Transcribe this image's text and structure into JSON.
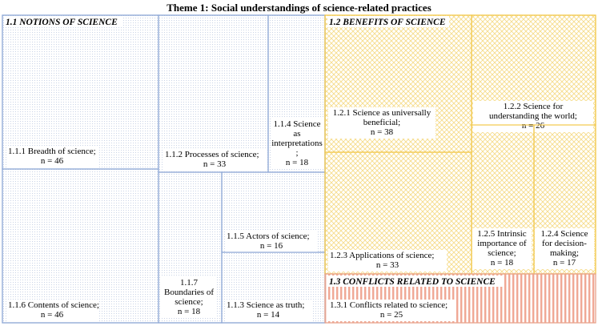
{
  "title": "Theme 1: Social understandings of science-related practices",
  "colors": {
    "notions_border": "#8fa9d6",
    "notions_dots": "#c9d3e6",
    "benefits_border": "#f2c84b",
    "benefits_hatch": "#f6dc8a",
    "conflicts_border": "#e8a58f",
    "conflicts_stripe": "#f0a895"
  },
  "chart_data": {
    "type": "treemap",
    "title": "Theme 1: Social understandings of science-related practices",
    "groups": [
      {
        "id": "notions",
        "header": "1.1 NOTIONS OF SCIENCE",
        "categories": [
          {
            "label": "1.1.1 Breadth of science;",
            "n": "n = 46",
            "value": 46
          },
          {
            "label": "1.1.2 Processes of science;",
            "n": "n = 33",
            "value": 33
          },
          {
            "label": "1.1.4 Science as interpretations;",
            "n": "n = 18",
            "value": 18
          },
          {
            "label": "1.1.6 Contents of science;",
            "n": "n = 46",
            "value": 46
          },
          {
            "label": "1.1.7 Boundaries of science;",
            "n": "n = 18",
            "value": 18
          },
          {
            "label": "1.1.5 Actors of science;",
            "n": "n = 16",
            "value": 16
          },
          {
            "label": "1.1.3 Science as truth;",
            "n": "n = 14",
            "value": 14
          }
        ]
      },
      {
        "id": "benefits",
        "header": "1.2 BENEFITS OF SCIENCE",
        "categories": [
          {
            "label": "1.2.1 Science as universally beneficial;",
            "n": "n = 38",
            "value": 38
          },
          {
            "label": "1.2.2 Science for understanding the world;",
            "n": "n = 26",
            "value": 26
          },
          {
            "label": "1.2.3 Applications of science;",
            "n": "n = 33",
            "value": 33
          },
          {
            "label": "1.2.5 Intrinsic importance of science;",
            "n": "n = 18",
            "value": 18
          },
          {
            "label": "1.2.4 Science for decision-making;",
            "n": "n = 17",
            "value": 17
          }
        ]
      },
      {
        "id": "conflicts",
        "header": "1.3 CONFLICTS RELATED TO SCIENCE",
        "categories": [
          {
            "label": "1.3.1 Conflicts related to science;",
            "n": "n = 25",
            "value": 25
          }
        ]
      }
    ]
  }
}
